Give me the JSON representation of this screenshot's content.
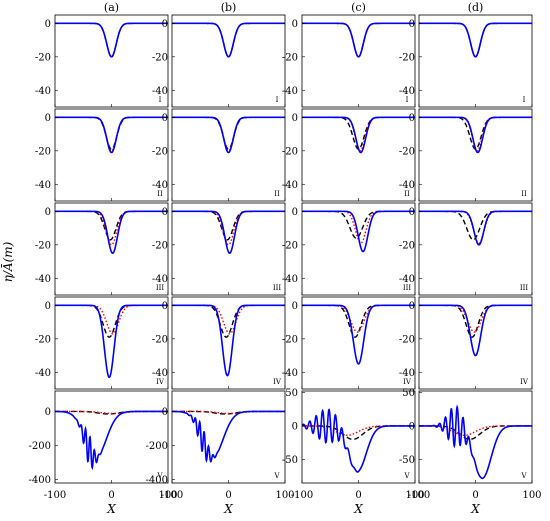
{
  "figure": {
    "ylabel": "η/Ā(m)",
    "xlabel": "X",
    "column_labels": [
      "(a)",
      "(b)",
      "(c)",
      "(d)"
    ],
    "row_labels": [
      "I",
      "II",
      "III",
      "IV",
      "V"
    ],
    "colors": {
      "blue": "#0000ff",
      "black": "#000000",
      "red": "#ff0000",
      "magenta": "#cc00cc"
    }
  },
  "chart_data": {
    "type": "line",
    "grid": false,
    "legend": "none",
    "x_range": [
      -100,
      100
    ],
    "x_ticks": [
      -100,
      0,
      100
    ],
    "series_styles": [
      {
        "key": "blue",
        "style": "solid",
        "color": "#0000ff"
      },
      {
        "key": "black",
        "style": "dashed",
        "color": "#000000"
      },
      {
        "key": "red",
        "style": "dotted",
        "color": "#ff0000"
      }
    ],
    "rows": [
      {
        "label": "I",
        "ylim": [
          -50,
          5
        ],
        "yticks": [
          0,
          -20,
          -40
        ]
      },
      {
        "label": "II",
        "ylim": [
          -50,
          5
        ],
        "yticks": [
          0,
          -20,
          -40
        ]
      },
      {
        "label": "III",
        "ylim": [
          -50,
          5
        ],
        "yticks": [
          0,
          -20,
          -40
        ]
      },
      {
        "label": "IV",
        "ylim": [
          -50,
          5
        ],
        "yticks": [
          0,
          -20,
          -40
        ]
      },
      {
        "label": "V",
        "ylim": [
          -420,
          120
        ],
        "yticks": [
          200,
          0,
          -200,
          -400
        ]
      }
    ],
    "row5_cd": {
      "ylim": [
        -85,
        52
      ],
      "yticks": [
        50,
        0,
        -50
      ]
    },
    "panels": {
      "a": [
        {
          "blue": {
            "amp": -20,
            "c": 0,
            "w": 12
          },
          "black": {
            "amp": -20,
            "c": 0,
            "w": 12
          },
          "red": {
            "amp": -20,
            "c": 0,
            "w": 12
          }
        },
        {
          "blue": {
            "amp": -21,
            "c": 0,
            "w": 12
          },
          "black": {
            "amp": -19,
            "c": 0,
            "w": 13
          },
          "red": {
            "amp": -20,
            "c": 0,
            "w": 12
          }
        },
        {
          "blue": {
            "amp": -25,
            "c": 2,
            "w": 12
          },
          "black": {
            "amp": -17,
            "c": -2,
            "w": 14
          },
          "red": {
            "amp": -20,
            "c": 0,
            "w": 13
          }
        },
        {
          "blue": {
            "amp": -43,
            "c": -4,
            "w": 12
          },
          "black": {
            "amp": -19,
            "c": -4,
            "w": 15
          },
          "red": {
            "amp": -17,
            "c": 2,
            "w": 15
          }
        },
        {
          "blue": {
            "amp": -275,
            "c": -28,
            "w": 26,
            "ripple": 90,
            "rc": -40,
            "rw": 12,
            "rk": 0.8
          },
          "black": {
            "amp": -15,
            "c": -6,
            "w": 25
          },
          "red": {
            "amp": -12,
            "c": 2,
            "w": 28
          }
        }
      ],
      "b": [
        {
          "blue": {
            "amp": -20,
            "c": 0,
            "w": 12
          },
          "black": {
            "amp": -20,
            "c": 0,
            "w": 12
          },
          "red": {
            "amp": -20,
            "c": 0,
            "w": 12
          }
        },
        {
          "blue": {
            "amp": -21,
            "c": 0,
            "w": 12
          },
          "black": {
            "amp": -19,
            "c": 0,
            "w": 13
          },
          "red": {
            "amp": -20,
            "c": 0,
            "w": 12
          }
        },
        {
          "blue": {
            "amp": -25,
            "c": 2,
            "w": 12
          },
          "black": {
            "amp": -17,
            "c": -2,
            "w": 14
          },
          "red": {
            "amp": -20,
            "c": 0,
            "w": 13
          }
        },
        {
          "blue": {
            "amp": -42,
            "c": -2,
            "w": 12
          },
          "black": {
            "amp": -19,
            "c": -4,
            "w": 15
          },
          "red": {
            "amp": -17,
            "c": 2,
            "w": 15
          }
        },
        {
          "blue": {
            "amp": -270,
            "c": -28,
            "w": 26,
            "ripple": 75,
            "rc": -45,
            "rw": 14,
            "rk": 0.8
          },
          "black": {
            "amp": -15,
            "c": -6,
            "w": 25
          },
          "red": {
            "amp": -12,
            "c": 2,
            "w": 28
          }
        }
      ],
      "c": [
        {
          "blue": {
            "amp": -20,
            "c": 0,
            "w": 12
          },
          "black": {
            "amp": -20,
            "c": 0,
            "w": 12
          },
          "red": {
            "amp": -20,
            "c": 0,
            "w": 12
          }
        },
        {
          "blue": {
            "amp": -21,
            "c": 4,
            "w": 12
          },
          "black": {
            "amp": -19,
            "c": 0,
            "w": 14
          },
          "red": {
            "amp": -20,
            "c": 3,
            "w": 12
          }
        },
        {
          "blue": {
            "amp": -24,
            "c": 8,
            "w": 12
          },
          "black": {
            "amp": -16,
            "c": -4,
            "w": 16
          },
          "red": {
            "amp": -19,
            "c": 4,
            "w": 13
          }
        },
        {
          "blue": {
            "amp": -35,
            "c": 0,
            "w": 13
          },
          "black": {
            "amp": -19,
            "c": -6,
            "w": 15
          },
          "red": {
            "amp": -16,
            "c": -2,
            "w": 16
          }
        },
        {
          "blue": {
            "amp": -68,
            "c": -2,
            "w": 22,
            "ripple": 25,
            "rc": -55,
            "rw": 28,
            "rk": 0.55
          },
          "black": {
            "amp": -20,
            "c": -10,
            "w": 25
          },
          "red": {
            "amp": -14,
            "c": -20,
            "w": 28
          }
        }
      ],
      "d": [
        {
          "blue": {
            "amp": -20,
            "c": 0,
            "w": 12
          },
          "black": {
            "amp": -20,
            "c": 0,
            "w": 12
          },
          "red": {
            "amp": -20,
            "c": 0,
            "w": 12
          }
        },
        {
          "blue": {
            "amp": -21,
            "c": 4,
            "w": 12
          },
          "black": {
            "amp": -19,
            "c": 0,
            "w": 14
          },
          "red": {
            "amp": -20,
            "c": 3,
            "w": 12
          }
        },
        {
          "blue": {
            "amp": -20,
            "c": 6,
            "w": 12
          },
          "black": {
            "amp": -17,
            "c": -4,
            "w": 16
          },
          "red": {
            "amp": -19,
            "c": 6,
            "w": 13
          }
        },
        {
          "blue": {
            "amp": -30,
            "c": 0,
            "w": 13
          },
          "black": {
            "amp": -19,
            "c": -6,
            "w": 15
          },
          "red": {
            "amp": -16,
            "c": -2,
            "w": 16
          }
        },
        {
          "blue": {
            "amp": -78,
            "c": 12,
            "w": 22,
            "ripple": 30,
            "rc": -35,
            "rw": 20,
            "rk": 0.6
          },
          "black": {
            "amp": -20,
            "c": -10,
            "w": 25
          },
          "red": {
            "amp": -14,
            "c": -20,
            "w": 28
          }
        }
      ]
    }
  }
}
